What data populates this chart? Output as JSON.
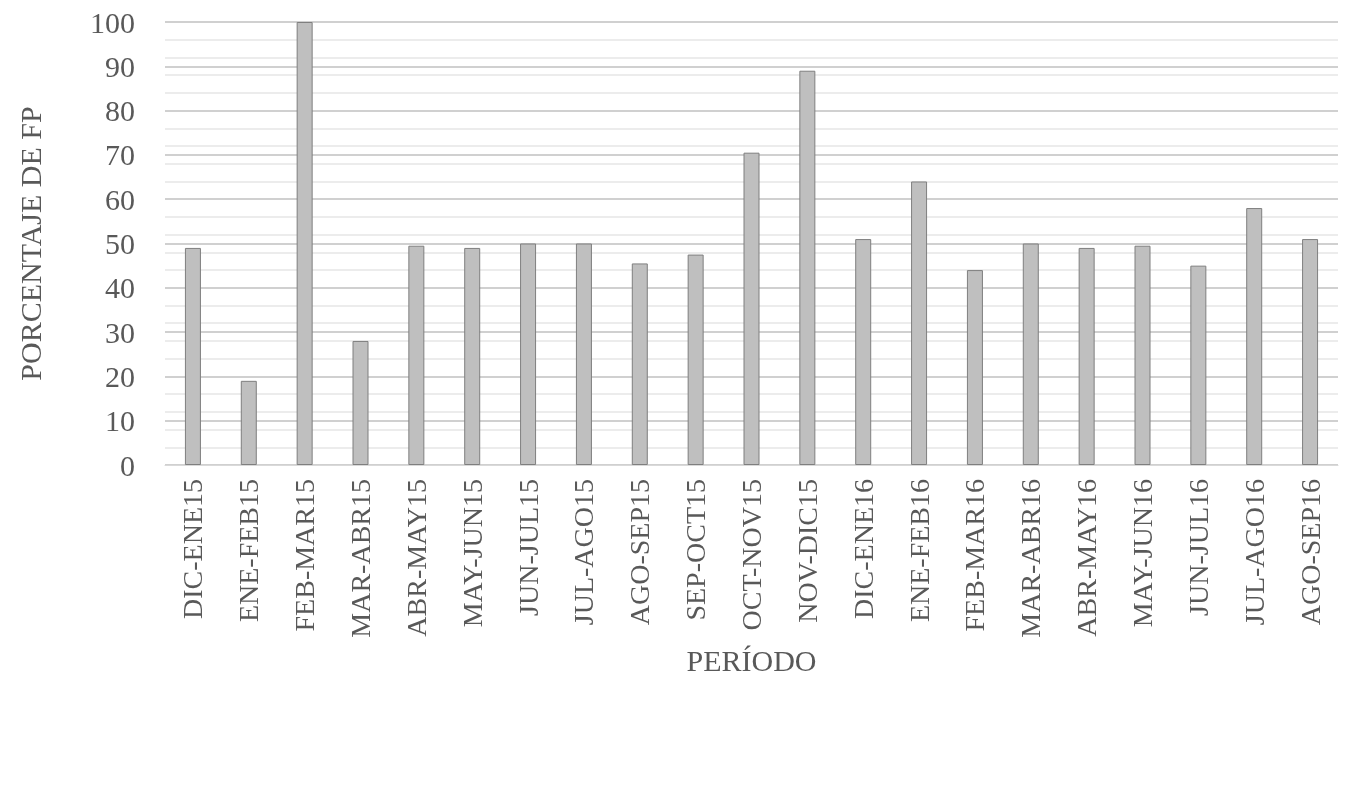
{
  "chart_data": {
    "type": "bar",
    "xlabel": "PERÍODO",
    "ylabel": "PORCENTAJE DE FP",
    "categories": [
      "DIC-ENE15",
      "ENE-FEB15",
      "FEB-MAR15",
      "MAR-ABR15",
      "ABR-MAY15",
      "MAY-JUN15",
      "JUN-JUL15",
      "JUL-AGO15",
      "AGO-SEP15",
      "SEP-OCT15",
      "OCT-NOV15",
      "NOV-DIC15",
      "DIC-ENE16",
      "ENE-FEB16",
      "FEB-MAR16",
      "MAR-ABR16",
      "ABR-MAY16",
      "MAY-JUN16",
      "JUN-JUL16",
      "JUL-AGO16",
      "AGO-SEP16"
    ],
    "values": [
      49,
      19,
      100,
      28,
      49.5,
      49,
      50,
      50,
      45.5,
      47.5,
      70.5,
      89,
      51,
      64,
      44,
      50,
      49,
      49.5,
      45,
      58,
      51
    ],
    "color": "#bfbfbf",
    "ylim": [
      0,
      100
    ],
    "yticks": [
      0,
      10,
      20,
      30,
      40,
      50,
      60,
      70,
      80,
      90,
      100
    ],
    "grid": "y"
  }
}
